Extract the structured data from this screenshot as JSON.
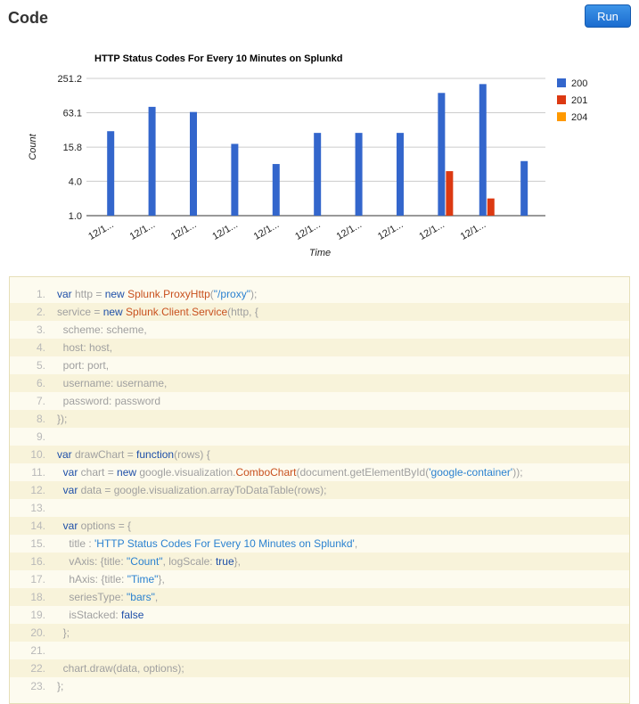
{
  "page": {
    "title": "Code",
    "run_label": "Run"
  },
  "chart_data": {
    "type": "bar",
    "title": "HTTP Status Codes For Every 10 Minutes on Splunkd",
    "xlabel": "Time",
    "ylabel": "Count",
    "yscale": "log",
    "ylim": [
      1,
      251.2
    ],
    "yticks": [
      "251.2",
      "63.1",
      "15.8",
      "4.0",
      "1.0"
    ],
    "ytick_values": [
      251.2,
      63.1,
      15.8,
      4.0,
      1.0
    ],
    "categories": [
      "12/1...",
      "12/1...",
      "12/1...",
      "12/1...",
      "12/1...",
      "12/1...",
      "12/1...",
      "12/1...",
      "12/1...",
      "12/1..."
    ],
    "series": [
      {
        "name": "200",
        "color": "#3366cc",
        "values": [
          30,
          80,
          65,
          18,
          8,
          28,
          28,
          28,
          140,
          200
        ]
      },
      {
        "name": "201",
        "color": "#dc3912",
        "values": [
          null,
          null,
          null,
          null,
          null,
          null,
          null,
          null,
          6,
          2
        ]
      },
      {
        "name": "204",
        "color": "#ff9900",
        "values": [
          null,
          null,
          null,
          null,
          null,
          null,
          null,
          null,
          null,
          null
        ]
      }
    ],
    "extra_bar": {
      "value": 9,
      "color": "#3366cc"
    },
    "legend_position": "right",
    "grid": true
  },
  "code": {
    "lines": [
      [
        [
          "k",
          "var"
        ],
        [
          "p",
          " http = "
        ],
        [
          "k",
          "new"
        ],
        [
          "p",
          " "
        ],
        [
          "c",
          "Splunk"
        ],
        [
          "p",
          "."
        ],
        [
          "c",
          "ProxyHttp"
        ],
        [
          "p",
          "("
        ],
        [
          "s",
          "\"/proxy\""
        ],
        [
          "p",
          ");"
        ]
      ],
      [
        [
          "p",
          "service = "
        ],
        [
          "k",
          "new"
        ],
        [
          "p",
          " "
        ],
        [
          "c",
          "Splunk"
        ],
        [
          "p",
          "."
        ],
        [
          "c",
          "Client"
        ],
        [
          "p",
          "."
        ],
        [
          "c",
          "Service"
        ],
        [
          "p",
          "(http, {"
        ]
      ],
      [
        [
          "p",
          "  scheme: scheme,"
        ]
      ],
      [
        [
          "p",
          "  host: host,"
        ]
      ],
      [
        [
          "p",
          "  port: port,"
        ]
      ],
      [
        [
          "p",
          "  username: username,"
        ]
      ],
      [
        [
          "p",
          "  password: password"
        ]
      ],
      [
        [
          "p",
          "});"
        ]
      ],
      [],
      [
        [
          "k",
          "var"
        ],
        [
          "p",
          " drawChart = "
        ],
        [
          "k",
          "function"
        ],
        [
          "p",
          "(rows) {"
        ]
      ],
      [
        [
          "p",
          "  "
        ],
        [
          "k",
          "var"
        ],
        [
          "p",
          " chart = "
        ],
        [
          "k",
          "new"
        ],
        [
          "p",
          " google.visualization."
        ],
        [
          "c",
          "ComboChart"
        ],
        [
          "p",
          "(document.getElementById("
        ],
        [
          "s",
          "'google-container'"
        ],
        [
          "p",
          "));"
        ]
      ],
      [
        [
          "p",
          "  "
        ],
        [
          "k",
          "var"
        ],
        [
          "p",
          " data = google.visualization.arrayToDataTable(rows);"
        ]
      ],
      [],
      [
        [
          "p",
          "  "
        ],
        [
          "k",
          "var"
        ],
        [
          "p",
          " options = {"
        ]
      ],
      [
        [
          "p",
          "    title : "
        ],
        [
          "s",
          "'HTTP Status Codes For Every 10 Minutes on Splunkd'"
        ],
        [
          "p",
          ","
        ]
      ],
      [
        [
          "p",
          "    vAxis: {title: "
        ],
        [
          "s",
          "\"Count\""
        ],
        [
          "p",
          ", logScale: "
        ],
        [
          "k",
          "true"
        ],
        [
          "p",
          "},"
        ]
      ],
      [
        [
          "p",
          "    hAxis: {title: "
        ],
        [
          "s",
          "\"Time\""
        ],
        [
          "p",
          "},"
        ]
      ],
      [
        [
          "p",
          "    seriesType: "
        ],
        [
          "s",
          "\"bars\""
        ],
        [
          "p",
          ","
        ]
      ],
      [
        [
          "p",
          "    isStacked: "
        ],
        [
          "k",
          "false"
        ]
      ],
      [
        [
          "p",
          "  };"
        ]
      ],
      [],
      [
        [
          "p",
          "  chart.draw(data, options);"
        ]
      ],
      [
        [
          "p",
          "};"
        ]
      ]
    ]
  }
}
